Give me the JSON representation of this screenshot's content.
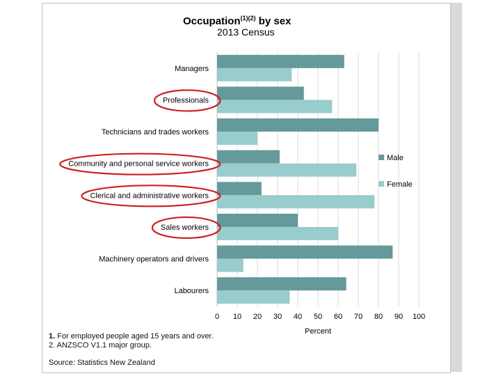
{
  "chart_data": {
    "type": "bar",
    "orientation": "horizontal",
    "title": "Occupation",
    "title_superscript": "(1)(2)",
    "title_suffix": " by sex",
    "subtitle": "2013 Census",
    "xlabel": "Percent",
    "xlim": [
      0,
      100
    ],
    "xticks": [
      "0",
      "10",
      "20",
      "30",
      "40",
      "50",
      "60",
      "70",
      "80",
      "90",
      "100"
    ],
    "grid": "vertical",
    "legend_position": "right",
    "categories": [
      "Managers",
      "Professionals",
      "Technicians and trades workers",
      "Community and personal service workers",
      "Clerical and administrative workers",
      "Sales workers",
      "Machinery operators and drivers",
      "Labourers"
    ],
    "circled_categories": [
      "Professionals",
      "Community and personal service workers",
      "Clerical and administrative workers",
      "Sales workers"
    ],
    "series": [
      {
        "name": "Male",
        "color": "#669999",
        "values": [
          63,
          43,
          80,
          31,
          22,
          40,
          87,
          64
        ]
      },
      {
        "name": "Female",
        "color": "#99cccc",
        "values": [
          37,
          57,
          20,
          69,
          78,
          60,
          13,
          36
        ]
      }
    ],
    "annotation_color": "#cc2222"
  },
  "footnotes": [
    {
      "num": "1.",
      "text": " For employed people aged 15 years and over."
    },
    {
      "num": "2.",
      "text": " ANZSCO V1.1 major group."
    }
  ],
  "source": "Source: Statistics New Zealand"
}
